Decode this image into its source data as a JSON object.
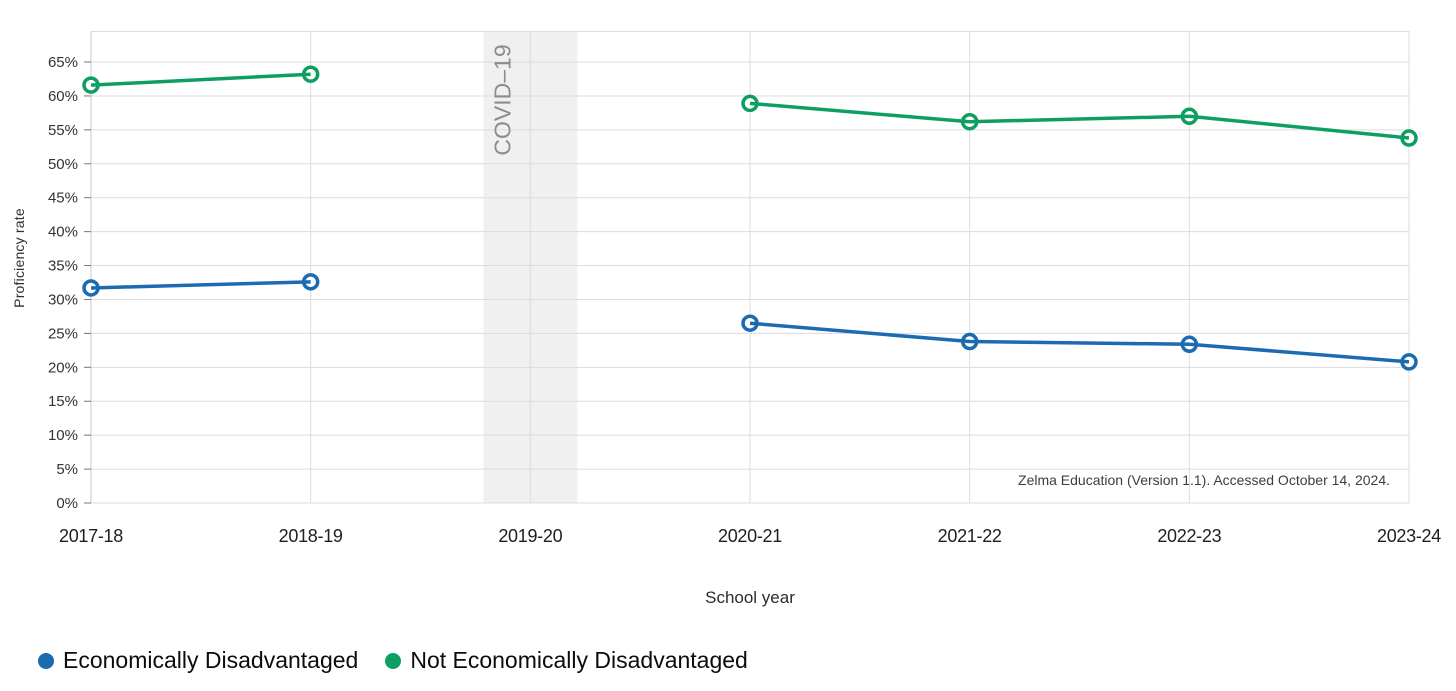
{
  "chart_data": {
    "type": "line",
    "title": "",
    "xlabel": "School year",
    "ylabel": "Proficiency rate",
    "categories": [
      "2017-18",
      "2018-19",
      "2019-20",
      "2020-21",
      "2021-22",
      "2022-23",
      "2023-24"
    ],
    "y_ticks": [
      "0%",
      "5%",
      "10%",
      "15%",
      "20%",
      "25%",
      "30%",
      "35%",
      "40%",
      "45%",
      "50%",
      "55%",
      "60%",
      "65%"
    ],
    "ylim": [
      0,
      69.5
    ],
    "y_unit": "percent",
    "grid": true,
    "legend_position": "bottom-left",
    "series": [
      {
        "name": "Economically Disadvantaged",
        "color": "#1b6bb1",
        "values": [
          31.7,
          32.6,
          null,
          26.5,
          23.8,
          23.4,
          20.8
        ]
      },
      {
        "name": "Not Economically Disadvantaged",
        "color": "#0f9e62",
        "values": [
          61.6,
          63.2,
          null,
          58.9,
          56.2,
          57.0,
          53.8
        ]
      }
    ],
    "annotation": {
      "label": "COVID–19",
      "category": "2019-20",
      "band_color": "#f0f0f0",
      "text_color": "#8c8c8c"
    },
    "source": "Zelma Education (Version 1.1). Accessed October 14, 2024."
  }
}
